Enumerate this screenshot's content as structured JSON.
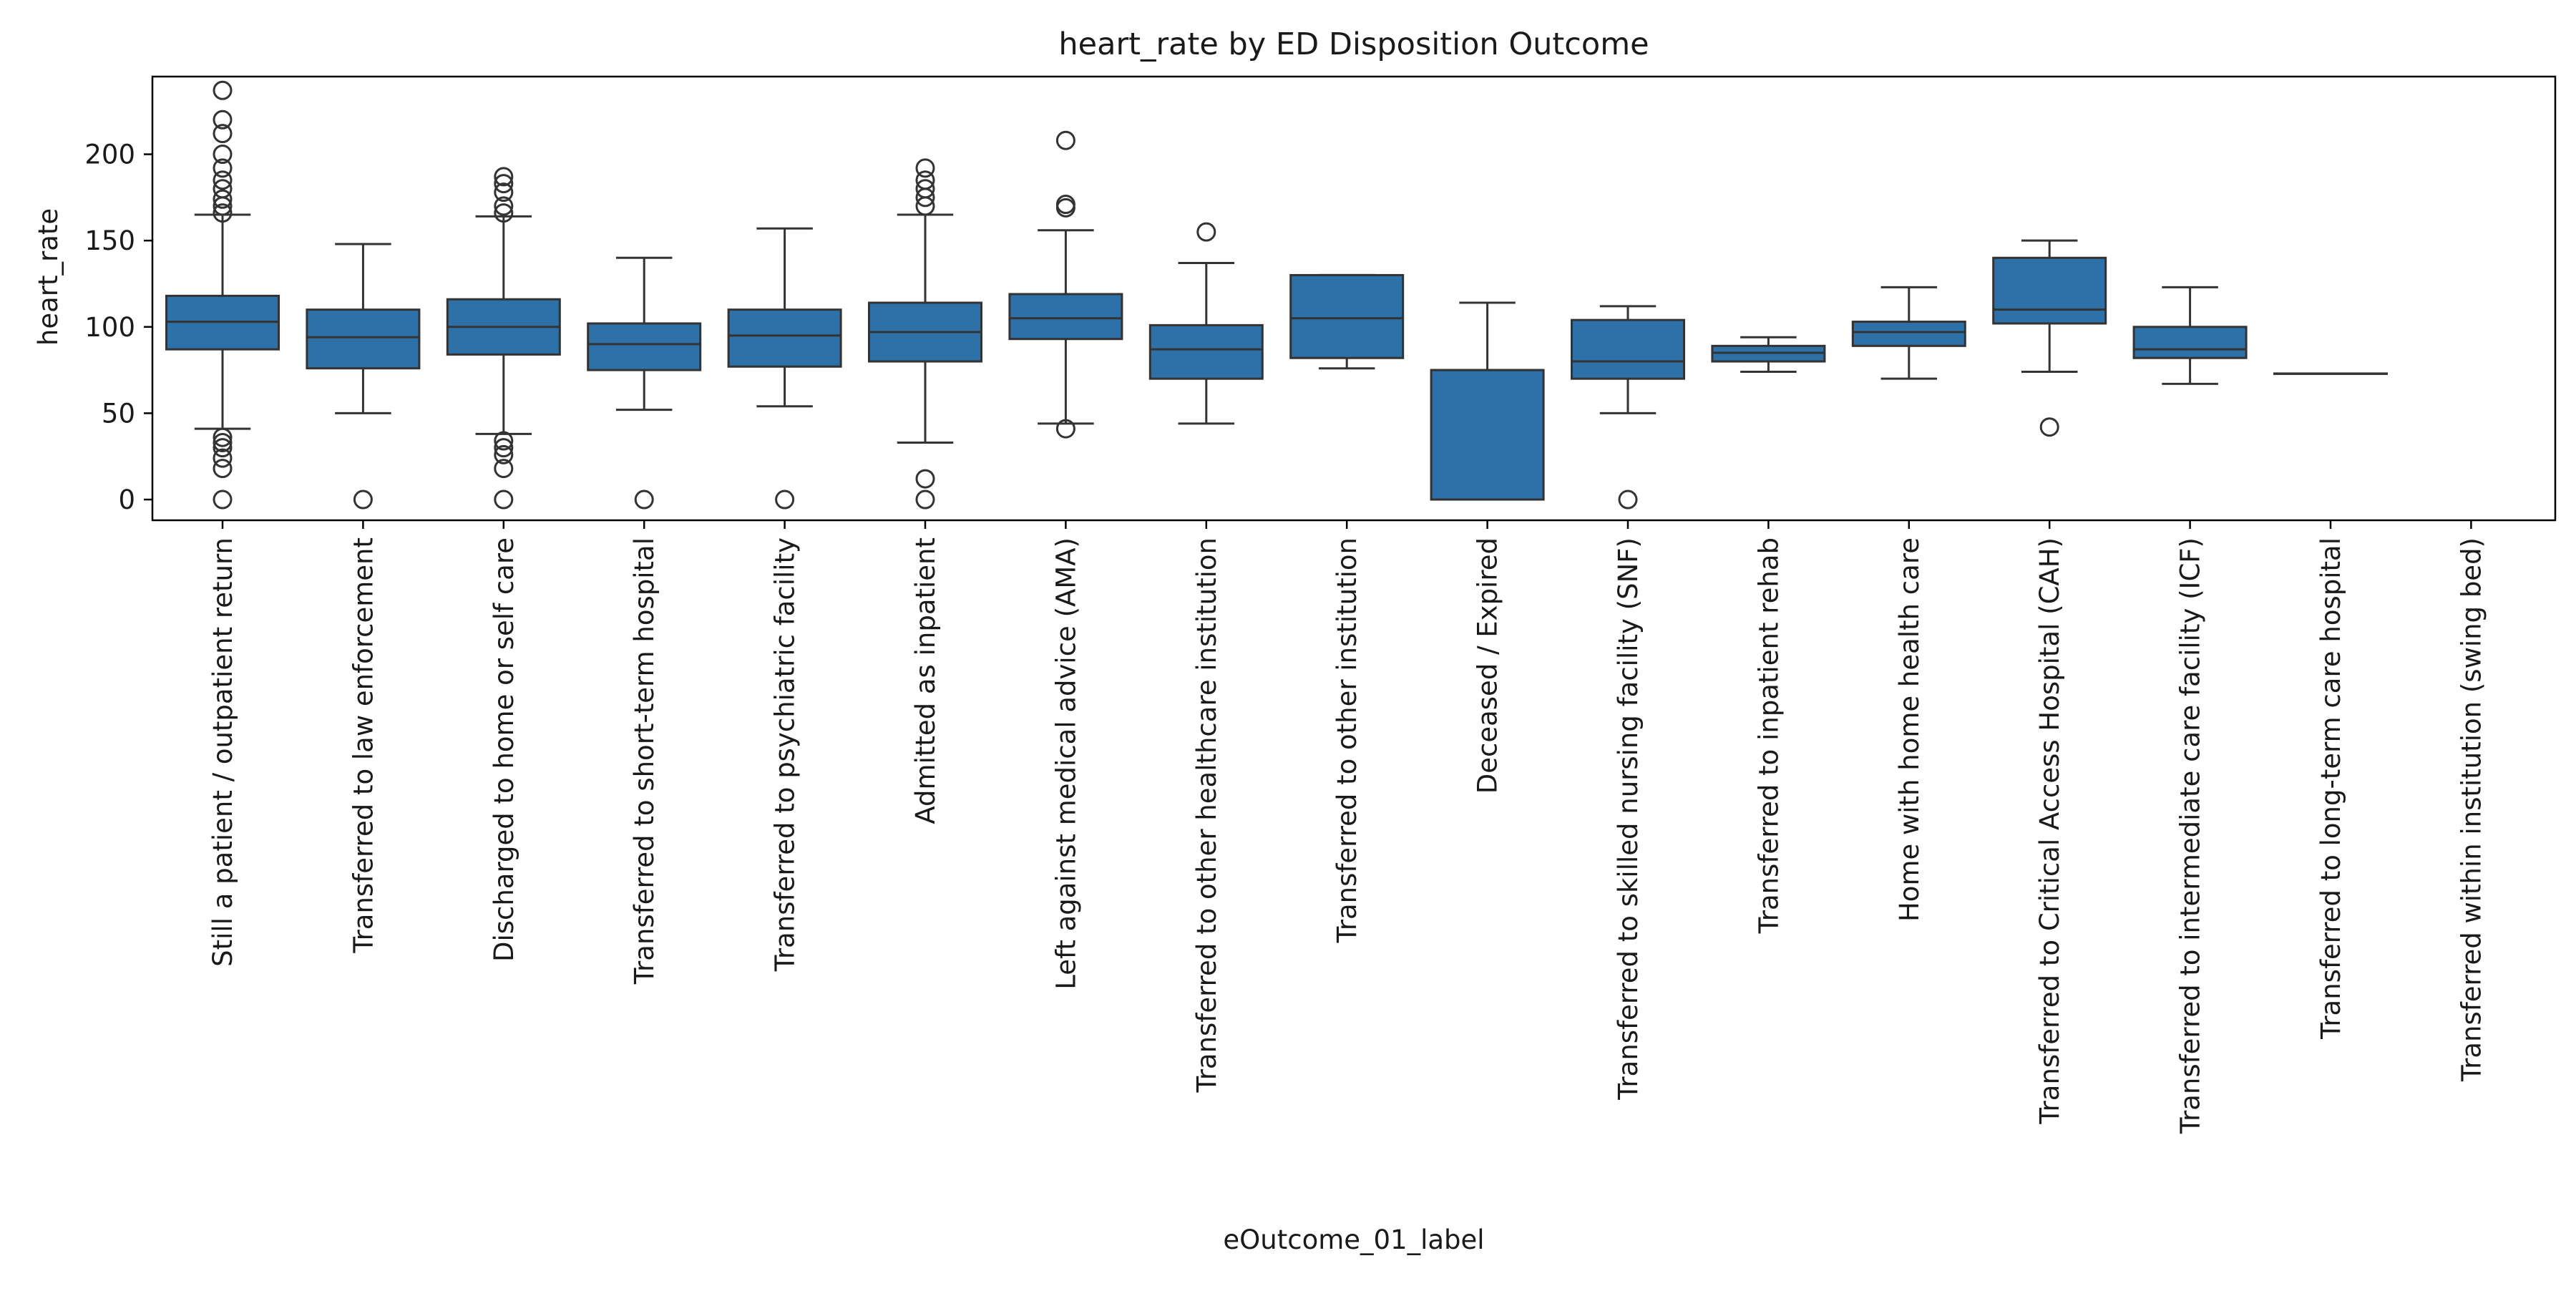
{
  "chart_data": {
    "type": "box",
    "title": "heart_rate by ED Disposition Outcome",
    "xlabel": "eOutcome_01_label",
    "ylabel": "heart_rate",
    "ylim": [
      -12,
      245
    ],
    "yticks": [
      0,
      50,
      100,
      150,
      200
    ],
    "grid": false,
    "box_color": "#2e71a8",
    "line_color": "#333333",
    "categories": [
      "Still a patient / outpatient return",
      "Transferred to law enforcement",
      "Discharged to home or self care",
      "Transferred to short-term hospital",
      "Transferred to psychiatric facility",
      "Admitted as inpatient",
      "Left against medical advice (AMA)",
      "Transferred to other healthcare institution",
      "Transferred to other institution",
      "Deceased / Expired",
      "Transferred to skilled nursing facility (SNF)",
      "Transferred to inpatient rehab",
      "Home with home health care",
      "Transferred to Critical Access Hospital (CAH)",
      "Transferred to intermediate care facility (ICF)",
      "Transferred to long-term care hospital",
      "Transferred within institution (swing bed)"
    ],
    "boxes": [
      {
        "whislo": 41,
        "q1": 87,
        "med": 103,
        "q3": 118,
        "whishi": 165,
        "fliers": [
          0,
          18,
          24,
          30,
          33,
          36,
          166,
          170,
          174,
          180,
          185,
          192,
          200,
          212,
          220,
          237
        ]
      },
      {
        "whislo": 50,
        "q1": 76,
        "med": 94,
        "q3": 110,
        "whishi": 148,
        "fliers": [
          0
        ]
      },
      {
        "whislo": 38,
        "q1": 84,
        "med": 100,
        "q3": 116,
        "whishi": 164,
        "fliers": [
          0,
          18,
          26,
          30,
          34,
          166,
          170,
          178,
          183,
          187
        ]
      },
      {
        "whislo": 52,
        "q1": 75,
        "med": 90,
        "q3": 102,
        "whishi": 140,
        "fliers": [
          0
        ]
      },
      {
        "whislo": 54,
        "q1": 77,
        "med": 95,
        "q3": 110,
        "whishi": 157,
        "fliers": [
          0
        ]
      },
      {
        "whislo": 33,
        "q1": 80,
        "med": 97,
        "q3": 114,
        "whishi": 165,
        "fliers": [
          0,
          12,
          170,
          175,
          180,
          185,
          192
        ]
      },
      {
        "whislo": 44,
        "q1": 93,
        "med": 105,
        "q3": 119,
        "whishi": 156,
        "fliers": [
          41,
          169,
          171,
          208
        ]
      },
      {
        "whislo": 44,
        "q1": 70,
        "med": 87,
        "q3": 101,
        "whishi": 137,
        "fliers": [
          155
        ]
      },
      {
        "whislo": 76,
        "q1": 82,
        "med": 105,
        "q3": 130,
        "whishi": 130,
        "fliers": []
      },
      {
        "whislo": 0,
        "q1": 0,
        "med": 75,
        "q3": 75,
        "whishi": 114,
        "fliers": []
      },
      {
        "whislo": 50,
        "q1": 70,
        "med": 80,
        "q3": 104,
        "whishi": 112,
        "fliers": [
          0
        ]
      },
      {
        "whislo": 74,
        "q1": 80,
        "med": 85,
        "q3": 89,
        "whishi": 94,
        "fliers": []
      },
      {
        "whislo": 70,
        "q1": 89,
        "med": 97,
        "q3": 103,
        "whishi": 123,
        "fliers": []
      },
      {
        "whislo": 74,
        "q1": 102,
        "med": 110,
        "q3": 140,
        "whishi": 150,
        "fliers": [
          42
        ]
      },
      {
        "whislo": 67,
        "q1": 82,
        "med": 87,
        "q3": 100,
        "whishi": 123,
        "fliers": []
      },
      {
        "whislo": 73,
        "q1": 73,
        "med": 73,
        "q3": 73,
        "whishi": 73,
        "fliers": []
      },
      null
    ]
  }
}
